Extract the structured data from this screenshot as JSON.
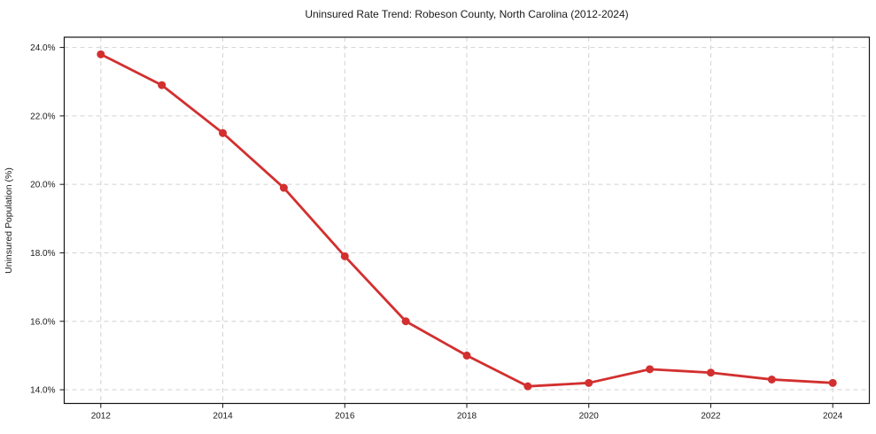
{
  "chart_data": {
    "type": "line",
    "title": "Uninsured Rate Trend: Robeson County, North Carolina (2012-2024)",
    "xlabel": "",
    "ylabel": "Uninsured Population (%)",
    "series": [
      {
        "name": "uninsured-rate",
        "x": [
          2012,
          2013,
          2014,
          2015,
          2016,
          2017,
          2018,
          2019,
          2020,
          2021,
          2022,
          2023,
          2024
        ],
        "values": [
          23.8,
          22.9,
          21.5,
          19.9,
          17.9,
          16.0,
          15.0,
          14.1,
          14.2,
          14.6,
          14.5,
          14.3,
          14.2
        ]
      }
    ],
    "x_ticks": [
      2012,
      2014,
      2016,
      2018,
      2020,
      2022,
      2024
    ],
    "x_tick_labels": [
      "2012",
      "2014",
      "2016",
      "2018",
      "2020",
      "2022",
      "2024"
    ],
    "y_ticks": [
      14.0,
      16.0,
      18.0,
      20.0,
      22.0,
      24.0
    ],
    "y_tick_labels": [
      "14.0%",
      "16.0%",
      "18.0%",
      "20.0%",
      "22.0%",
      "24.0%"
    ],
    "xlim": [
      2011.4,
      2024.6
    ],
    "ylim": [
      13.6,
      24.3
    ],
    "grid": true,
    "grid_style": "dashed",
    "legend": "none",
    "marker": "circle",
    "colors": {
      "line": "#d32f2f",
      "marker": "#d32f2f",
      "grid": "#d2d2d2",
      "spine": "#141414",
      "text": "#1a1a1a",
      "background": "#ffffff"
    }
  }
}
